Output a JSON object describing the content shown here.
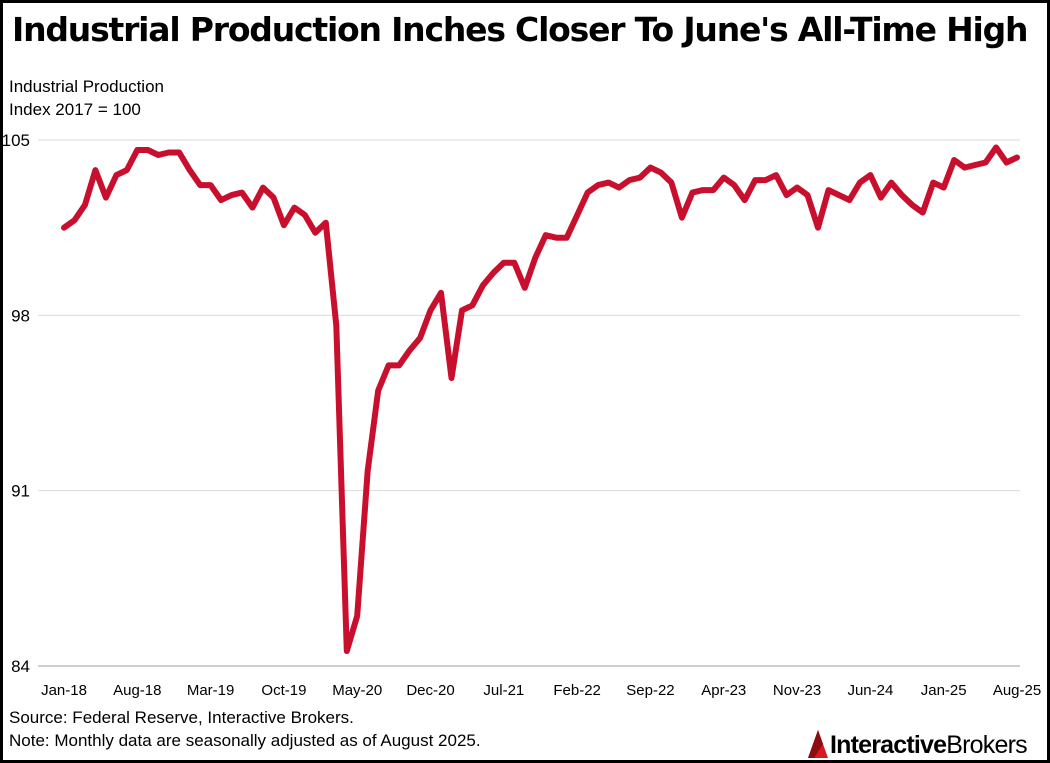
{
  "title": "Industrial Production Inches Closer To June's All-Time High",
  "y_axis_label": [
    "Industrial Production",
    "Index 2017 = 100"
  ],
  "notes": [
    "Source: Federal Reserve, Interactive Brokers.",
    "Note: Monthly data are seasonally adjusted as of August 2025."
  ],
  "brand": {
    "part1": "Interactive",
    "part2": "Brokers",
    "color": "#d71920",
    "icon": "interactive-brokers-logo-icon"
  },
  "colors": {
    "line": "#c8102e",
    "grid": "#d9d9d9",
    "axis": "#bfbfbf",
    "text": "#000000"
  },
  "chart_data": {
    "type": "line",
    "title": "Industrial Production Inches Closer To June's All-Time High",
    "ylabel": "Industrial Production Index 2017 = 100",
    "xlabel": "",
    "ylim": [
      84,
      105
    ],
    "yticks": [
      84,
      91,
      98,
      105
    ],
    "grid": true,
    "legend": "none",
    "x_tick_labels": [
      "Jan-18",
      "Aug-18",
      "Mar-19",
      "Oct-19",
      "May-20",
      "Dec-20",
      "Jul-21",
      "Feb-22",
      "Sep-22",
      "Apr-23",
      "Nov-23",
      "Jun-24",
      "Jan-25",
      "Aug-25"
    ],
    "x_start": "Jan-18",
    "x_end": "Aug-25",
    "series": [
      {
        "values": [
          101.5,
          101.8,
          102.4,
          103.8,
          102.7,
          103.6,
          103.8,
          104.6,
          104.6,
          104.4,
          104.5,
          104.5,
          103.8,
          103.2,
          103.2,
          102.6,
          102.8,
          102.9,
          102.3,
          103.1,
          102.7,
          101.6,
          102.3,
          102.0,
          101.3,
          101.7,
          97.6,
          84.6,
          86.0,
          91.8,
          95.0,
          96.0,
          96.0,
          96.6,
          97.1,
          98.2,
          98.9,
          95.5,
          98.2,
          98.4,
          99.2,
          99.7,
          100.1,
          100.1,
          99.1,
          100.3,
          101.2,
          101.1,
          101.1,
          102.0,
          102.9,
          103.2,
          103.3,
          103.1,
          103.4,
          103.5,
          103.9,
          103.7,
          103.3,
          101.9,
          102.9,
          103.0,
          103.0,
          103.5,
          103.2,
          102.6,
          103.4,
          103.4,
          103.6,
          102.8,
          103.1,
          102.8,
          101.5,
          103.0,
          102.8,
          102.6,
          103.3,
          103.6,
          102.7,
          103.3,
          102.8,
          102.4,
          102.1,
          103.3,
          103.1,
          104.2,
          103.9,
          104.0,
          104.1,
          104.7,
          104.1,
          104.3
        ]
      }
    ]
  }
}
